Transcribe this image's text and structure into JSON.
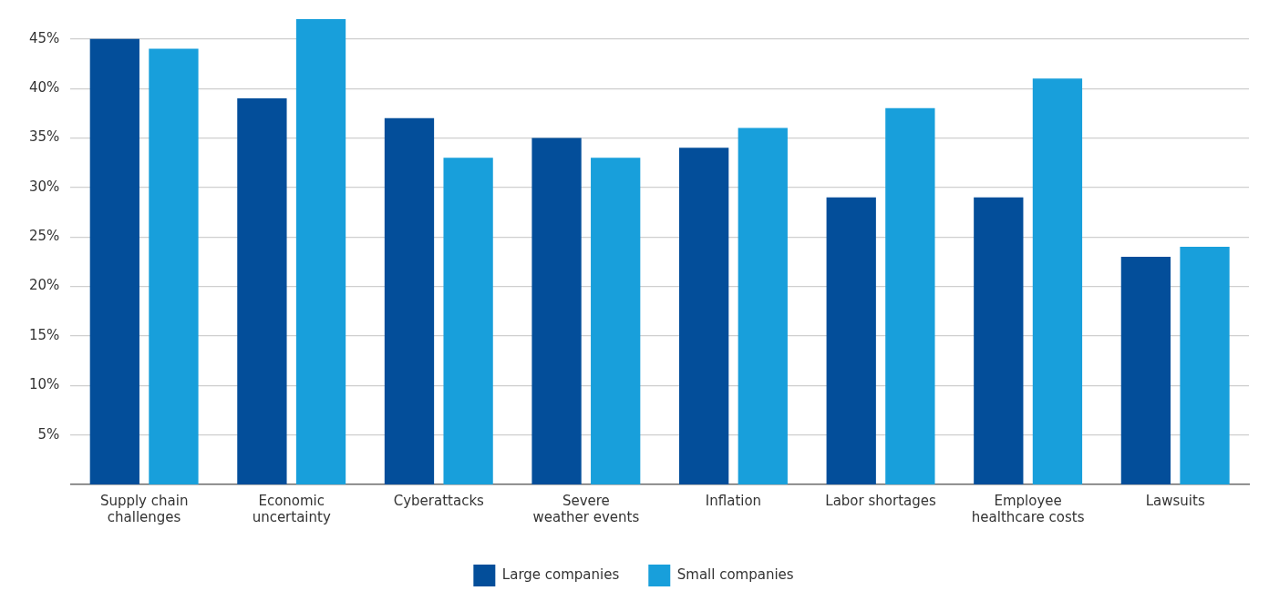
{
  "chart_data": {
    "type": "bar",
    "categories": [
      "Supply chain\nchallenges",
      "Economic\nuncertainty",
      "Cyberattacks",
      "Severe\nweather events",
      "Inflation",
      "Labor shortages",
      "Employee\nhealthcare costs",
      "Lawsuits"
    ],
    "series": [
      {
        "name": "Large companies",
        "color": "#034e9a",
        "values": [
          45,
          39,
          37,
          35,
          34,
          29,
          29,
          23
        ]
      },
      {
        "name": "Small companies",
        "color": "#189fdb",
        "values": [
          44,
          47,
          33,
          33,
          36,
          38,
          41,
          24
        ]
      }
    ],
    "ylim": [
      0,
      47
    ],
    "yticks": [
      {
        "value": 5,
        "label": "5%"
      },
      {
        "value": 10,
        "label": "10%"
      },
      {
        "value": 15,
        "label": "15%"
      },
      {
        "value": 20,
        "label": "20%"
      },
      {
        "value": 25,
        "label": "25%"
      },
      {
        "value": 30,
        "label": "30%"
      },
      {
        "value": 35,
        "label": "35%"
      },
      {
        "value": 40,
        "label": "40%"
      },
      {
        "value": 45,
        "label": "45%"
      }
    ],
    "grid": "y",
    "legend": "bottom"
  }
}
